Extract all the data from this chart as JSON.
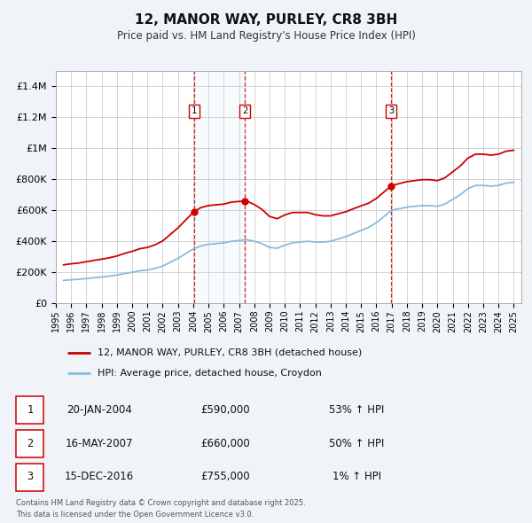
{
  "title": "12, MANOR WAY, PURLEY, CR8 3BH",
  "subtitle": "Price paid vs. HM Land Registry's House Price Index (HPI)",
  "title_fontsize": 11,
  "subtitle_fontsize": 8.5,
  "background_color": "#f0f4f8",
  "plot_bg_color": "#ffffff",
  "grid_color": "#cccccc",
  "ylim": [
    0,
    1500000
  ],
  "yticks": [
    0,
    200000,
    400000,
    600000,
    800000,
    1000000,
    1200000,
    1400000
  ],
  "ytick_labels": [
    "£0",
    "£200K",
    "£400K",
    "£600K",
    "£800K",
    "£1M",
    "£1.2M",
    "£1.4M"
  ],
  "transactions": [
    {
      "label": "1",
      "date": "20-JAN-2004",
      "date_num": 2004.05,
      "price": 590000,
      "pct": "53%",
      "direction": "↑"
    },
    {
      "label": "2",
      "date": "16-MAY-2007",
      "date_num": 2007.38,
      "price": 660000,
      "pct": "50%",
      "direction": "↑"
    },
    {
      "label": "3",
      "date": "15-DEC-2016",
      "date_num": 2016.96,
      "price": 755000,
      "pct": "1%",
      "direction": "↑"
    }
  ],
  "line1_color": "#cc0000",
  "line2_color": "#88bbdd",
  "legend_line1": "12, MANOR WAY, PURLEY, CR8 3BH (detached house)",
  "legend_line2": "HPI: Average price, detached house, Croydon",
  "footer1": "Contains HM Land Registry data © Crown copyright and database right 2025.",
  "footer2": "This data is licensed under the Open Government Licence v3.0.",
  "xlim_start": 1995,
  "xlim_end": 2025.5
}
